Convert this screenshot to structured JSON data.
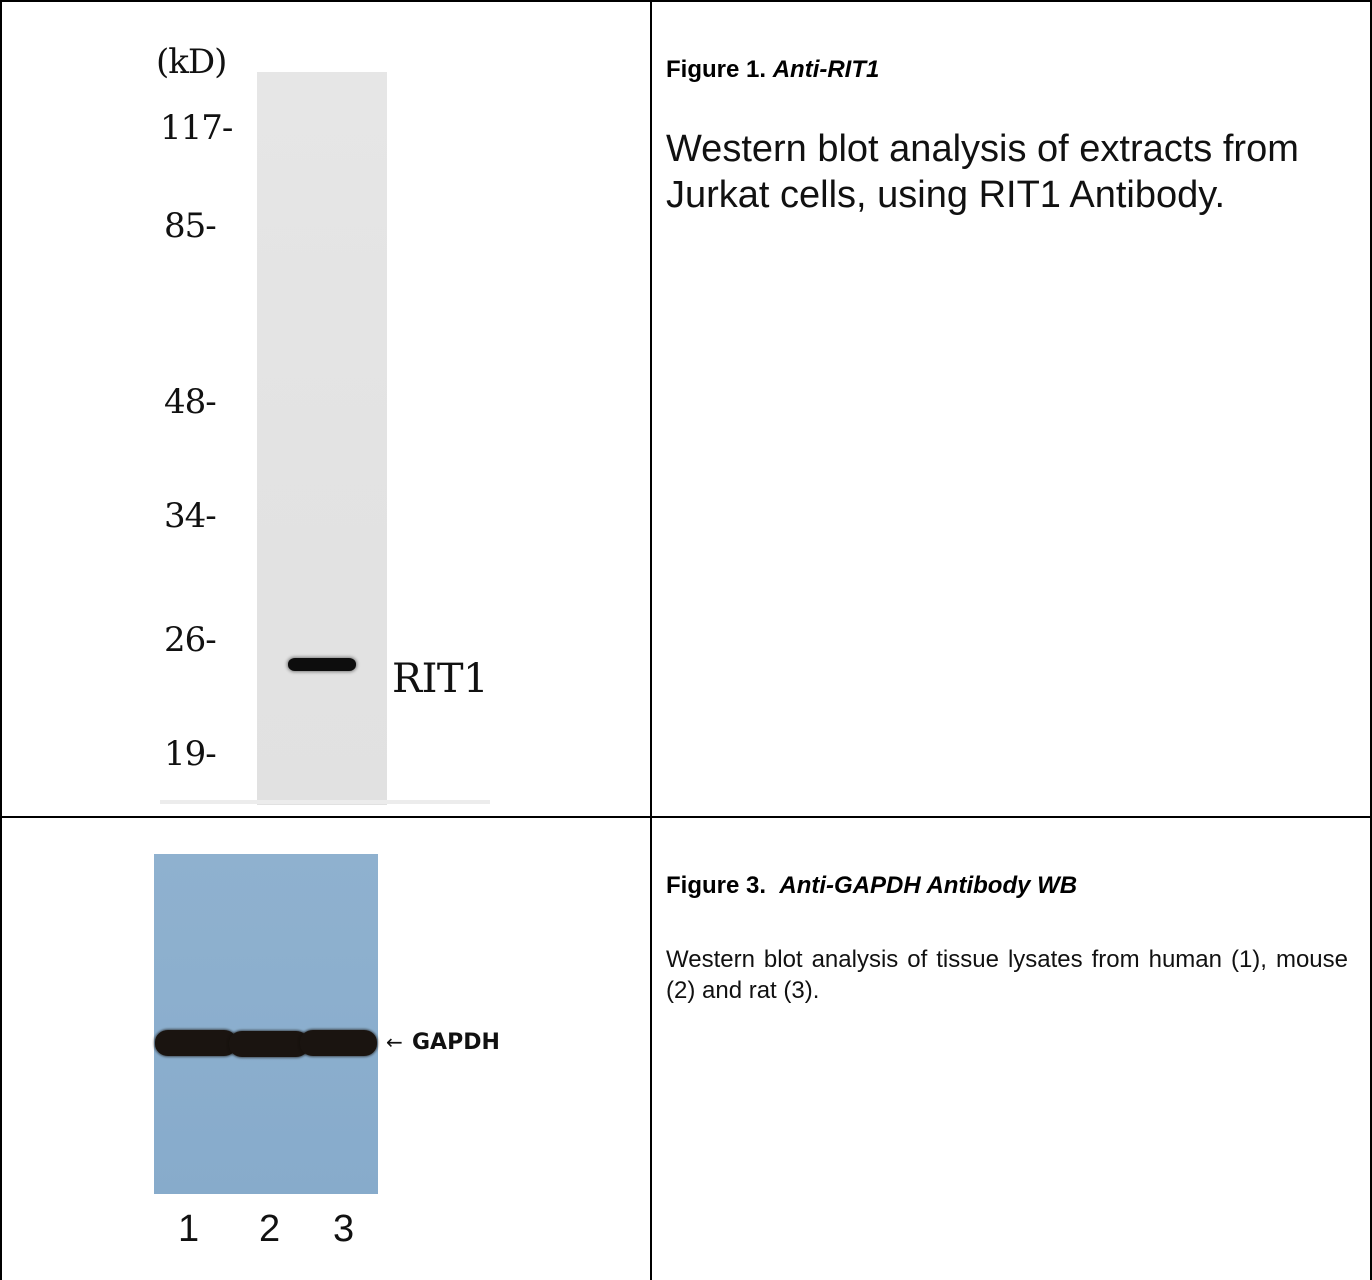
{
  "figure1": {
    "unit_label": "(kD)",
    "markers": [
      "117-",
      "85-",
      "48-",
      "34-",
      "26-",
      "19-"
    ],
    "band_label": "RIT1",
    "title_prefix": "Figure 1.",
    "title_emph": "Anti-RIT1",
    "description": "Western blot analysis of extracts from Jurkat cells, using RIT1 Antibody."
  },
  "figure3": {
    "band_label": "GAPDH",
    "arrow": "←",
    "lanes": [
      "1",
      "2",
      "3"
    ],
    "title_prefix": "Figure 3.",
    "title_emph": "Anti-GAPDH Antibody WB",
    "description": "Western blot analysis of tissue lysates from human (1), mouse (2) and rat (3)."
  }
}
